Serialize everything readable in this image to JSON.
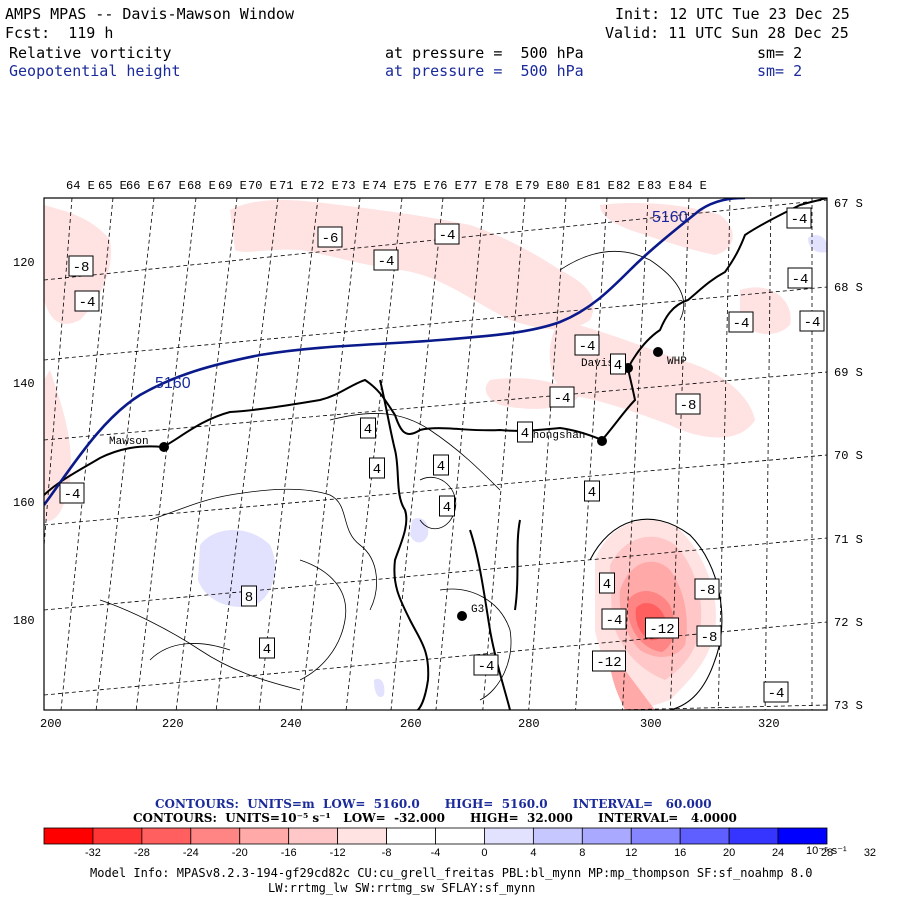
{
  "header": {
    "title": "AMPS MPAS -- Davis-Mawson Window",
    "forecast": "Fcst:  119 h",
    "init": "Init: 12 UTC Tue 23 Dec 25",
    "valid": "Valid: 11 UTC Sun 28 Dec 25",
    "field1": "Relative vorticity",
    "field2": "Geopotential height",
    "pressure1": "at pressure =  500 hPa",
    "pressure2": "at pressure =  500 hPa",
    "sm1": "sm= 2",
    "sm2": "sm= 2"
  },
  "map": {
    "lon_labels": [
      "64 E",
      "65 E",
      "66 E",
      "67 E",
      "68 E",
      "69 E",
      "70 E",
      "71 E",
      "72 E",
      "73 E",
      "74 E",
      "75 E",
      "76 E",
      "77 E",
      "78 E",
      "79 E",
      "80 E",
      "81 E",
      "82 E",
      "83 E",
      "84 E"
    ],
    "lat_labels": [
      "67 S",
      "68 S",
      "69 S",
      "70 S",
      "71 S",
      "72 S",
      "73 S"
    ],
    "x_ticks": [
      "200",
      "220",
      "240",
      "260",
      "280",
      "300",
      "320"
    ],
    "y_ticks": [
      "120",
      "140",
      "160",
      "180"
    ],
    "stations": [
      {
        "name": "Mawson"
      },
      {
        "name": "Davis"
      },
      {
        "name": "WHP"
      },
      {
        "name": "Zhongshan"
      },
      {
        "name": "G3"
      }
    ],
    "height_labels": [
      "5160",
      "5160"
    ],
    "vort_labels": [
      "-8",
      "-4",
      "-6",
      "-4",
      "-4",
      "-4",
      "-4",
      "-4",
      "-4",
      "-4",
      "-8",
      "4",
      "4",
      "4",
      "4",
      "4",
      "4",
      "4",
      "8",
      "4",
      "-8",
      "-4",
      "-12",
      "-12",
      "-4",
      "-4",
      "-8",
      "-4",
      "-4",
      "4"
    ]
  },
  "footer": {
    "contours_height": "CONTOURS:  UNITS=m  LOW=  5160.0      HIGH=  5160.0      INTERVAL=   60.000",
    "contours_vort": "CONTOURS:  UNITS=10⁻⁵ s⁻¹   LOW=  -32.000      HIGH=  32.000      INTERVAL=   4.0000",
    "colorbar_labels": [
      "-32",
      "-28",
      "-24",
      "-20",
      "-16",
      "-12",
      "-8",
      "-4",
      "0",
      "4",
      "8",
      "12",
      "16",
      "20",
      "24",
      "28",
      "32"
    ],
    "colorbar_units": "10⁻⁵ s⁻¹",
    "model_info_1": "Model Info: MPASv8.2.3-194-gf29cd82c CU:cu_grell_freitas PBL:bl_mynn MP:mp_thompson SF:sf_noahmp 8.0",
    "model_info_2": "LW:rrtmg_lw SW:rrtmg_sw SFLAY:sf_mynn"
  },
  "colors": {
    "colorbar": [
      "#ff0000",
      "#ff3535",
      "#ff5f5f",
      "#ff8585",
      "#ffa9a9",
      "#ffc7c7",
      "#ffe2e2",
      "#ffffff",
      "#ffffff",
      "#e2e2ff",
      "#c7c7ff",
      "#a9a9ff",
      "#8585ff",
      "#5f5fff",
      "#3535ff",
      "#0000ff"
    ],
    "height_contour": "#0a1a8a"
  }
}
